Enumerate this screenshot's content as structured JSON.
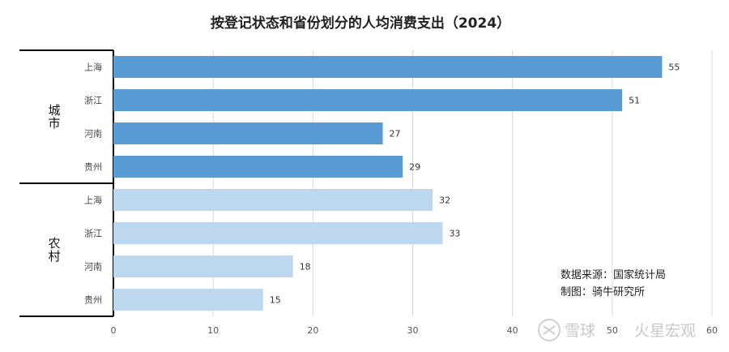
{
  "chart_data": {
    "type": "bar",
    "orientation": "horizontal",
    "title": "按登记状态和省份划分的人均消费支出（2024）",
    "groups": [
      {
        "name": "城市",
        "categories": [
          "上海",
          "浙江",
          "河南",
          "贵州"
        ],
        "values": [
          55,
          51,
          27,
          29
        ],
        "color": "#5b9bd5"
      },
      {
        "name": "农村",
        "categories": [
          "上海",
          "浙江",
          "河南",
          "贵州"
        ],
        "values": [
          32,
          33,
          18,
          15
        ],
        "color": "#bdd7ee"
      }
    ],
    "xlim": [
      0,
      60
    ],
    "xticks": [
      0,
      10,
      20,
      30,
      40,
      50,
      60
    ],
    "grid": true
  },
  "notes": {
    "source": "数据来源：国家统计局",
    "author": "制图：骑牛研究所"
  },
  "watermark": {
    "brand": "雪球",
    "account": "火星宏观"
  }
}
